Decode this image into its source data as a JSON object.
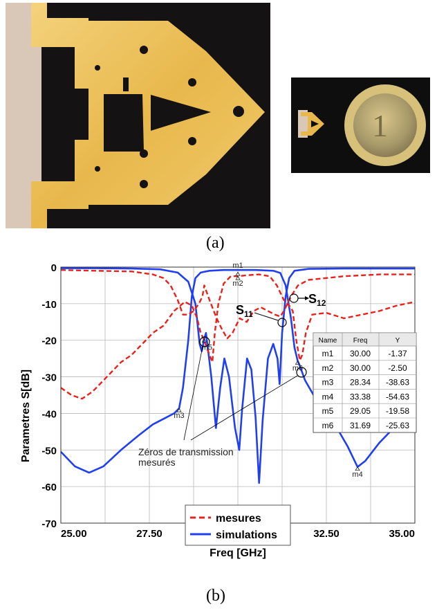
{
  "captions": {
    "a": "(a)",
    "b": "(b)"
  },
  "chart_data": {
    "type": "line",
    "xlabel": "Freq [GHz]",
    "ylabel": "Parametres S[dB]",
    "xlim": [
      25.0,
      35.0
    ],
    "ylim": [
      -70,
      0
    ],
    "x_ticks": [
      25.0,
      27.5,
      30.0,
      32.5,
      35.0
    ],
    "x_tick_labels": [
      "25.00",
      "27.50",
      "30.00",
      "32.50",
      "35.00"
    ],
    "y_ticks": [
      0,
      -10,
      -20,
      -30,
      -40,
      -50,
      -60,
      -70
    ],
    "y_tick_labels": [
      "0",
      "-10",
      "-20",
      "-30",
      "-40",
      "-50",
      "-60",
      "-70"
    ],
    "grid": true,
    "legend_position": "bottom-center",
    "legend": [
      {
        "label": "mesures",
        "color": "#e8211b",
        "style": "dashed"
      },
      {
        "label": "simulations",
        "color": "#1f3ff0",
        "style": "solid"
      }
    ],
    "series": [
      {
        "name": "simulations",
        "param": "S12",
        "color": "#1f3ff0",
        "points": [
          [
            25.0,
            -50.5
          ],
          [
            25.4,
            -54.5
          ],
          [
            25.8,
            -56.2
          ],
          [
            26.2,
            -54.5
          ],
          [
            26.7,
            -50
          ],
          [
            27.2,
            -46
          ],
          [
            27.6,
            -43
          ],
          [
            28.0,
            -41
          ],
          [
            28.2,
            -40
          ],
          [
            28.34,
            -38.63
          ],
          [
            28.45,
            -33
          ],
          [
            28.6,
            -20
          ],
          [
            28.7,
            -8
          ],
          [
            28.8,
            -3
          ],
          [
            28.95,
            -1.5
          ],
          [
            29.2,
            -1
          ],
          [
            29.6,
            -0.8
          ],
          [
            30.0,
            -0.8
          ],
          [
            30.5,
            -0.8
          ],
          [
            31.0,
            -1
          ],
          [
            31.2,
            -1.6
          ],
          [
            31.35,
            -5
          ],
          [
            31.5,
            -14
          ],
          [
            31.6,
            -22
          ],
          [
            31.69,
            -25.63
          ],
          [
            31.75,
            -27
          ],
          [
            31.9,
            -31
          ],
          [
            32.2,
            -36
          ],
          [
            32.5,
            -40
          ],
          [
            32.8,
            -44
          ],
          [
            33.1,
            -49
          ],
          [
            33.38,
            -54.63
          ],
          [
            33.6,
            -53
          ],
          [
            34.0,
            -48
          ],
          [
            34.5,
            -43
          ],
          [
            35.0,
            -40.5
          ]
        ]
      },
      {
        "name": "simulations",
        "param": "S11",
        "color": "#1f3ff0",
        "points": [
          [
            25.0,
            -0.3
          ],
          [
            26.0,
            -0.3
          ],
          [
            27.0,
            -0.4
          ],
          [
            27.8,
            -0.6
          ],
          [
            28.3,
            -1.5
          ],
          [
            28.6,
            -4
          ],
          [
            28.8,
            -10
          ],
          [
            28.92,
            -21
          ],
          [
            28.98,
            -23
          ],
          [
            29.05,
            -19.58
          ],
          [
            29.1,
            -18
          ],
          [
            29.25,
            -30
          ],
          [
            29.38,
            -44
          ],
          [
            29.5,
            -33
          ],
          [
            29.62,
            -25
          ],
          [
            29.75,
            -30
          ],
          [
            29.92,
            -44
          ],
          [
            30.04,
            -50
          ],
          [
            30.12,
            -39
          ],
          [
            30.26,
            -25
          ],
          [
            30.38,
            -28
          ],
          [
            30.5,
            -41
          ],
          [
            30.6,
            -59
          ],
          [
            30.7,
            -42
          ],
          [
            30.85,
            -25
          ],
          [
            31.0,
            -21
          ],
          [
            31.12,
            -25
          ],
          [
            31.18,
            -32
          ],
          [
            31.25,
            -18
          ],
          [
            31.35,
            -8
          ],
          [
            31.45,
            -3
          ],
          [
            31.6,
            -1
          ],
          [
            32.0,
            -0.5
          ],
          [
            33.0,
            -0.4
          ],
          [
            35.0,
            -0.4
          ]
        ]
      },
      {
        "name": "mesures",
        "param": "S12",
        "color": "#e8211b",
        "points": [
          [
            25.0,
            -33
          ],
          [
            25.3,
            -35
          ],
          [
            25.6,
            -36
          ],
          [
            25.9,
            -34
          ],
          [
            26.3,
            -30
          ],
          [
            26.7,
            -26
          ],
          [
            27.0,
            -24
          ],
          [
            27.3,
            -21
          ],
          [
            27.6,
            -18
          ],
          [
            27.9,
            -16
          ],
          [
            28.2,
            -12
          ],
          [
            28.5,
            -9.5
          ],
          [
            28.7,
            -10.5
          ],
          [
            28.85,
            -14
          ],
          [
            28.95,
            -18
          ],
          [
            29.05,
            -20
          ],
          [
            29.12,
            -22
          ],
          [
            29.2,
            -24
          ],
          [
            29.28,
            -26
          ],
          [
            29.35,
            -18
          ],
          [
            29.45,
            -10
          ],
          [
            29.6,
            -4.5
          ],
          [
            29.8,
            -2.5
          ],
          [
            30.0,
            -2.5
          ],
          [
            30.3,
            -2.2
          ],
          [
            30.6,
            -2.0
          ],
          [
            30.9,
            -2.5
          ],
          [
            31.1,
            -5
          ],
          [
            31.3,
            -9
          ],
          [
            31.45,
            -10.5
          ],
          [
            31.55,
            -12
          ],
          [
            31.65,
            -20
          ],
          [
            31.75,
            -25.5
          ],
          [
            31.82,
            -24
          ],
          [
            31.92,
            -18
          ],
          [
            32.1,
            -13
          ],
          [
            32.5,
            -12.5
          ],
          [
            33.0,
            -14
          ],
          [
            33.5,
            -13
          ],
          [
            34.0,
            -12
          ],
          [
            34.5,
            -10.5
          ],
          [
            35.0,
            -9.5
          ]
        ]
      },
      {
        "name": "mesures",
        "param": "S11",
        "color": "#e8211b",
        "points": [
          [
            25.0,
            -0.8
          ],
          [
            26.0,
            -1
          ],
          [
            27.0,
            -1.2
          ],
          [
            27.6,
            -2
          ],
          [
            27.9,
            -3
          ],
          [
            28.1,
            -5
          ],
          [
            28.3,
            -9
          ],
          [
            28.45,
            -13
          ],
          [
            28.6,
            -13
          ],
          [
            28.75,
            -12
          ],
          [
            28.9,
            -10
          ],
          [
            29.0,
            -8
          ],
          [
            29.05,
            -5
          ],
          [
            29.2,
            -9
          ],
          [
            29.4,
            -14
          ],
          [
            29.55,
            -17
          ],
          [
            29.7,
            -19.5
          ],
          [
            29.85,
            -18
          ],
          [
            30.05,
            -14
          ],
          [
            30.25,
            -15
          ],
          [
            30.45,
            -12
          ],
          [
            30.65,
            -11
          ],
          [
            30.85,
            -12
          ],
          [
            31.05,
            -13
          ],
          [
            31.2,
            -13.5
          ],
          [
            31.3,
            -12
          ],
          [
            31.5,
            -8
          ],
          [
            31.7,
            -5
          ],
          [
            32.0,
            -3.5
          ],
          [
            33.0,
            -2.5
          ],
          [
            34.0,
            -2
          ],
          [
            35.0,
            -2
          ]
        ]
      }
    ],
    "markers": [
      {
        "label": "m1",
        "x": 30.0,
        "y": -1.37
      },
      {
        "label": "m2",
        "x": 30.0,
        "y": -2.5
      },
      {
        "label": "m3",
        "x": 28.34,
        "y": -38.63
      },
      {
        "label": "m4",
        "x": 33.38,
        "y": -54.63
      },
      {
        "label": "m5",
        "x": 29.05,
        "y": -19.58
      },
      {
        "label": "m6",
        "x": 31.69,
        "y": -25.63
      }
    ],
    "marker_table": {
      "headers": [
        "Name",
        "Freq",
        "Y"
      ],
      "rows": [
        [
          "m1",
          "30.00",
          "-1.37"
        ],
        [
          "m2",
          "30.00",
          "-2.50"
        ],
        [
          "m3",
          "28.34",
          "-38.63"
        ],
        [
          "m4",
          "33.38",
          "-54.63"
        ],
        [
          "m5",
          "29.05",
          "-19.58"
        ],
        [
          "m6",
          "31.69",
          "-25.63"
        ]
      ]
    },
    "annotations": {
      "s11": {
        "text": "S",
        "sub": "11"
      },
      "s12": {
        "text": "S",
        "sub": "12"
      },
      "zeros_line1": "Zéros de transmission",
      "zeros_line2": "mesurés"
    }
  }
}
